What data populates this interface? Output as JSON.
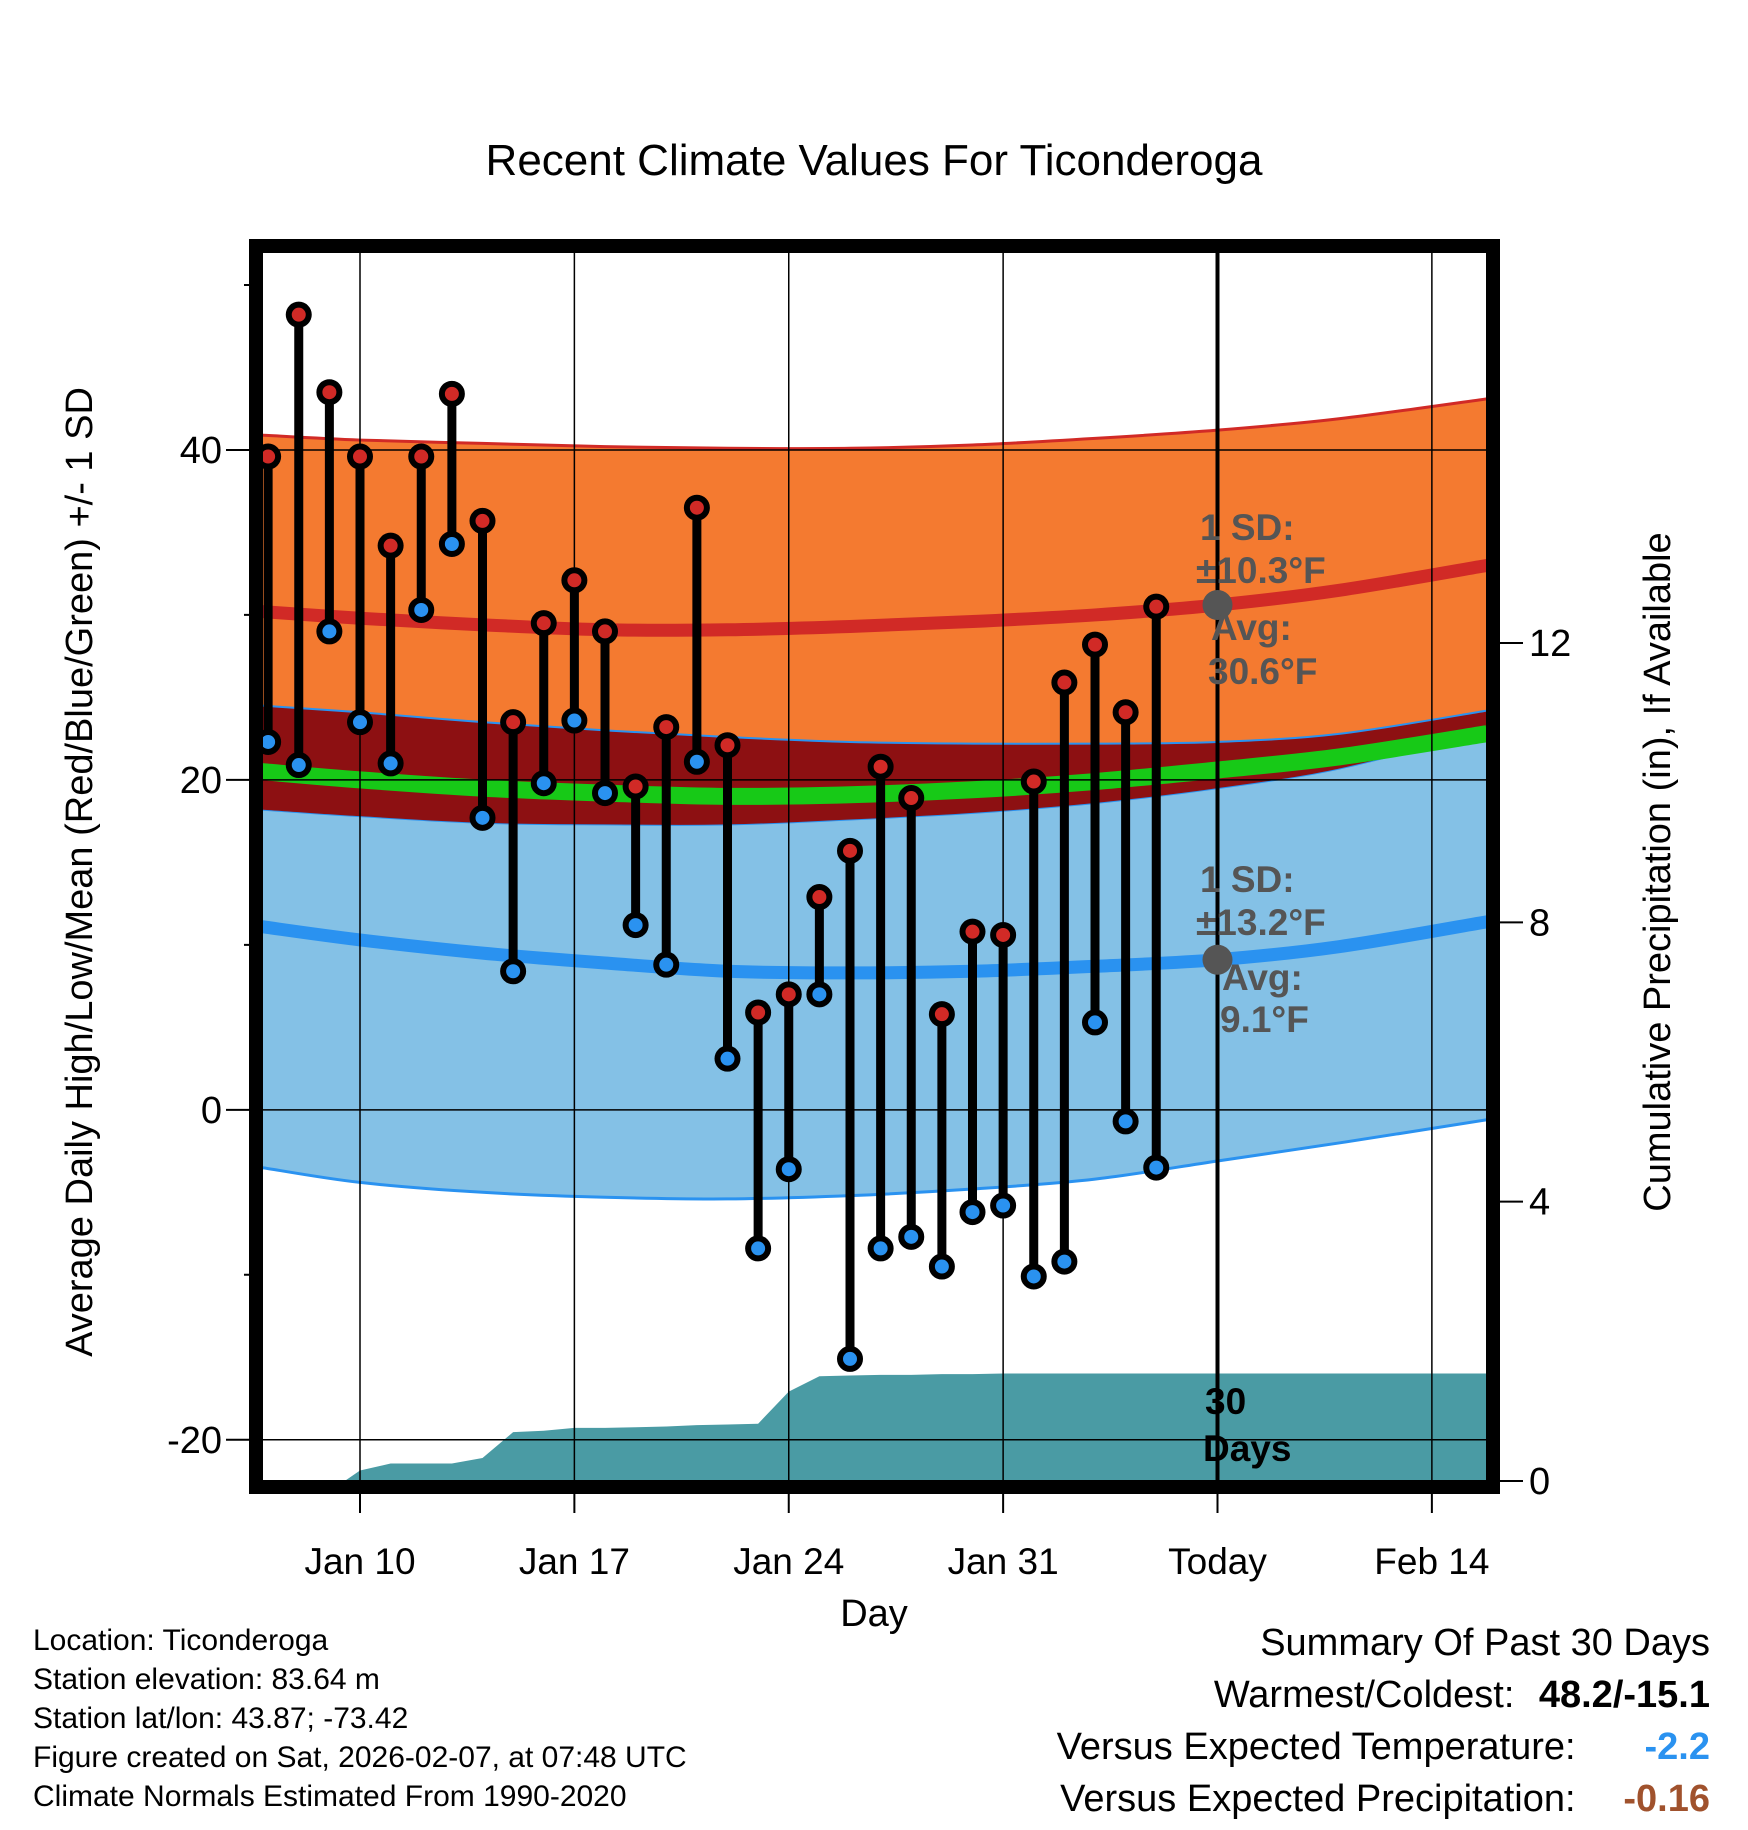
{
  "chart_data": {
    "type": "line",
    "title": "Recent Climate Values For Ticonderoga",
    "xlabel": "Day",
    "ylabel": "Average Daily High/Low/Mean (Red/Blue/Green) +/- 1 SD",
    "y2label": "Cumulative Precipitation (in), If Available",
    "x_ticks": [
      {
        "day": 10,
        "label": "Jan 10"
      },
      {
        "day": 17,
        "label": "Jan 17"
      },
      {
        "day": 24,
        "label": "Jan 24"
      },
      {
        "day": 31,
        "label": "Jan 31"
      },
      {
        "day": 38,
        "label": "Today"
      },
      {
        "day": 45,
        "label": "Feb 14"
      }
    ],
    "xlim": [
      6.8,
      46.8
    ],
    "ylim": [
      -22.5,
      52
    ],
    "y_ticks": [
      -20,
      0,
      20,
      40
    ],
    "y_minor_ticks": [
      -10,
      10,
      30,
      50
    ],
    "y2lim": [
      0,
      17.6
    ],
    "y2_ticks": [
      0,
      4,
      8,
      12
    ],
    "today_day": 38,
    "daily": [
      {
        "day": 7,
        "high": 39.6,
        "low": 22.3
      },
      {
        "day": 8,
        "high": 48.2,
        "low": 20.9
      },
      {
        "day": 9,
        "high": 43.5,
        "low": 29.0
      },
      {
        "day": 10,
        "high": 39.6,
        "low": 23.5
      },
      {
        "day": 11,
        "high": 34.2,
        "low": 21.0
      },
      {
        "day": 12,
        "high": 39.6,
        "low": 30.3
      },
      {
        "day": 13,
        "high": 43.4,
        "low": 34.3
      },
      {
        "day": 14,
        "high": 35.7,
        "low": 17.7
      },
      {
        "day": 15,
        "high": 23.5,
        "low": 8.4
      },
      {
        "day": 16,
        "high": 29.5,
        "low": 19.8
      },
      {
        "day": 17,
        "high": 32.1,
        "low": 23.6
      },
      {
        "day": 18,
        "high": 29.0,
        "low": 19.2
      },
      {
        "day": 19,
        "high": 19.6,
        "low": 11.2
      },
      {
        "day": 20,
        "high": 23.2,
        "low": 8.8
      },
      {
        "day": 21,
        "high": 36.5,
        "low": 21.1
      },
      {
        "day": 22,
        "high": 22.1,
        "low": 3.1
      },
      {
        "day": 23,
        "high": 5.9,
        "low": -8.4
      },
      {
        "day": 24,
        "high": 7.0,
        "low": -3.6
      },
      {
        "day": 25,
        "high": 12.9,
        "low": 7.0
      },
      {
        "day": 26,
        "high": 15.7,
        "low": -15.1
      },
      {
        "day": 27,
        "high": 20.8,
        "low": -8.4
      },
      {
        "day": 28,
        "high": 18.9,
        "low": -7.7
      },
      {
        "day": 29,
        "high": 5.8,
        "low": -9.5
      },
      {
        "day": 30,
        "high": 10.8,
        "low": -6.2
      },
      {
        "day": 31,
        "high": 10.6,
        "low": -5.8
      },
      {
        "day": 32,
        "high": 19.9,
        "low": -10.1
      },
      {
        "day": 33,
        "high": 25.9,
        "low": -9.2
      },
      {
        "day": 34,
        "high": 28.2,
        "low": 5.3
      },
      {
        "day": 35,
        "high": 24.1,
        "low": -0.7
      },
      {
        "day": 36,
        "high": 30.5,
        "low": -3.5
      }
    ],
    "normals": {
      "day": [
        6.8,
        10,
        14,
        18,
        22,
        26,
        30,
        34,
        38,
        42,
        46.8
      ],
      "high_avg": [
        30.2,
        29.8,
        29.4,
        29.1,
        29.1,
        29.3,
        29.6,
        30.0,
        30.6,
        31.5,
        33.0
      ],
      "high_upper": [
        40.9,
        40.6,
        40.4,
        40.2,
        40.1,
        40.1,
        40.3,
        40.7,
        41.2,
        41.9,
        43.1
      ],
      "high_lower": [
        24.5,
        24.1,
        23.5,
        23.0,
        22.6,
        22.3,
        22.2,
        22.2,
        22.3,
        22.8,
        24.2
      ],
      "mean_avg": [
        20.5,
        20.0,
        19.5,
        19.2,
        19.0,
        19.1,
        19.4,
        19.9,
        20.6,
        21.4,
        22.8
      ],
      "low_avg": [
        11.1,
        10.3,
        9.5,
        8.9,
        8.4,
        8.3,
        8.4,
        8.7,
        9.1,
        9.9,
        11.4
      ],
      "low_upper": [
        18.2,
        17.8,
        17.4,
        17.3,
        17.3,
        17.6,
        18.0,
        18.6,
        19.5,
        20.7,
        23.0
      ],
      "low_lower": [
        -3.5,
        -4.4,
        -5.0,
        -5.3,
        -5.4,
        -5.2,
        -4.8,
        -4.2,
        -3.1,
        -2.0,
        -0.6
      ]
    },
    "precip_cumulative": {
      "day": [
        9.5,
        10,
        11,
        12,
        13,
        14,
        15,
        16,
        17,
        18,
        19,
        20,
        21,
        22,
        23,
        24,
        25,
        26,
        27,
        28,
        29,
        30,
        31,
        38,
        46.8
      ],
      "values": [
        0.0,
        0.15,
        0.25,
        0.25,
        0.25,
        0.33,
        0.7,
        0.72,
        0.76,
        0.76,
        0.77,
        0.78,
        0.8,
        0.81,
        0.82,
        1.28,
        1.5,
        1.51,
        1.52,
        1.52,
        1.53,
        1.53,
        1.54,
        1.54,
        1.54
      ]
    },
    "annotations": {
      "high_sd": "±10.3°F",
      "high_sd_prefix": "1 SD:",
      "high_avg_label": "Avg:",
      "high_avg_value": "30.6°F",
      "low_sd": "±13.2°F",
      "low_sd_prefix": "1 SD:",
      "low_avg_label": "Avg:",
      "low_avg_value": "9.1°F",
      "days_label": "30",
      "days_label2": "Days"
    },
    "colors": {
      "high_band": "#f47a30",
      "high_line": "#d12a26",
      "high_lower_band": "#8d1012",
      "low_band": "#84c1e6",
      "low_line": "#2a92f0",
      "mean_line": "#17c917",
      "precip": "#4a9ba4",
      "high_marker": "#d12a26",
      "low_marker": "#2a92f0",
      "annotation": "#555555"
    }
  },
  "footer": {
    "location": "Location: Ticonderoga",
    "elevation": "Station elevation: 83.64 m",
    "latlon": "Station lat/lon: 43.87; -73.42",
    "created": "Figure created on Sat, 2026-02-07, at 07:48 UTC",
    "normals": "Climate Normals Estimated From 1990-2020"
  },
  "summary": {
    "title": "Summary Of Past 30 Days",
    "warmest_label": "Warmest/Coldest:",
    "warmest_value": "48.2/-15.1",
    "temp_label": "Versus Expected Temperature:",
    "temp_value": "-2.2",
    "temp_color": "#2a92f0",
    "precip_label": "Versus Expected Precipitation:",
    "precip_value": "-0.16",
    "precip_color": "#a0522d"
  }
}
